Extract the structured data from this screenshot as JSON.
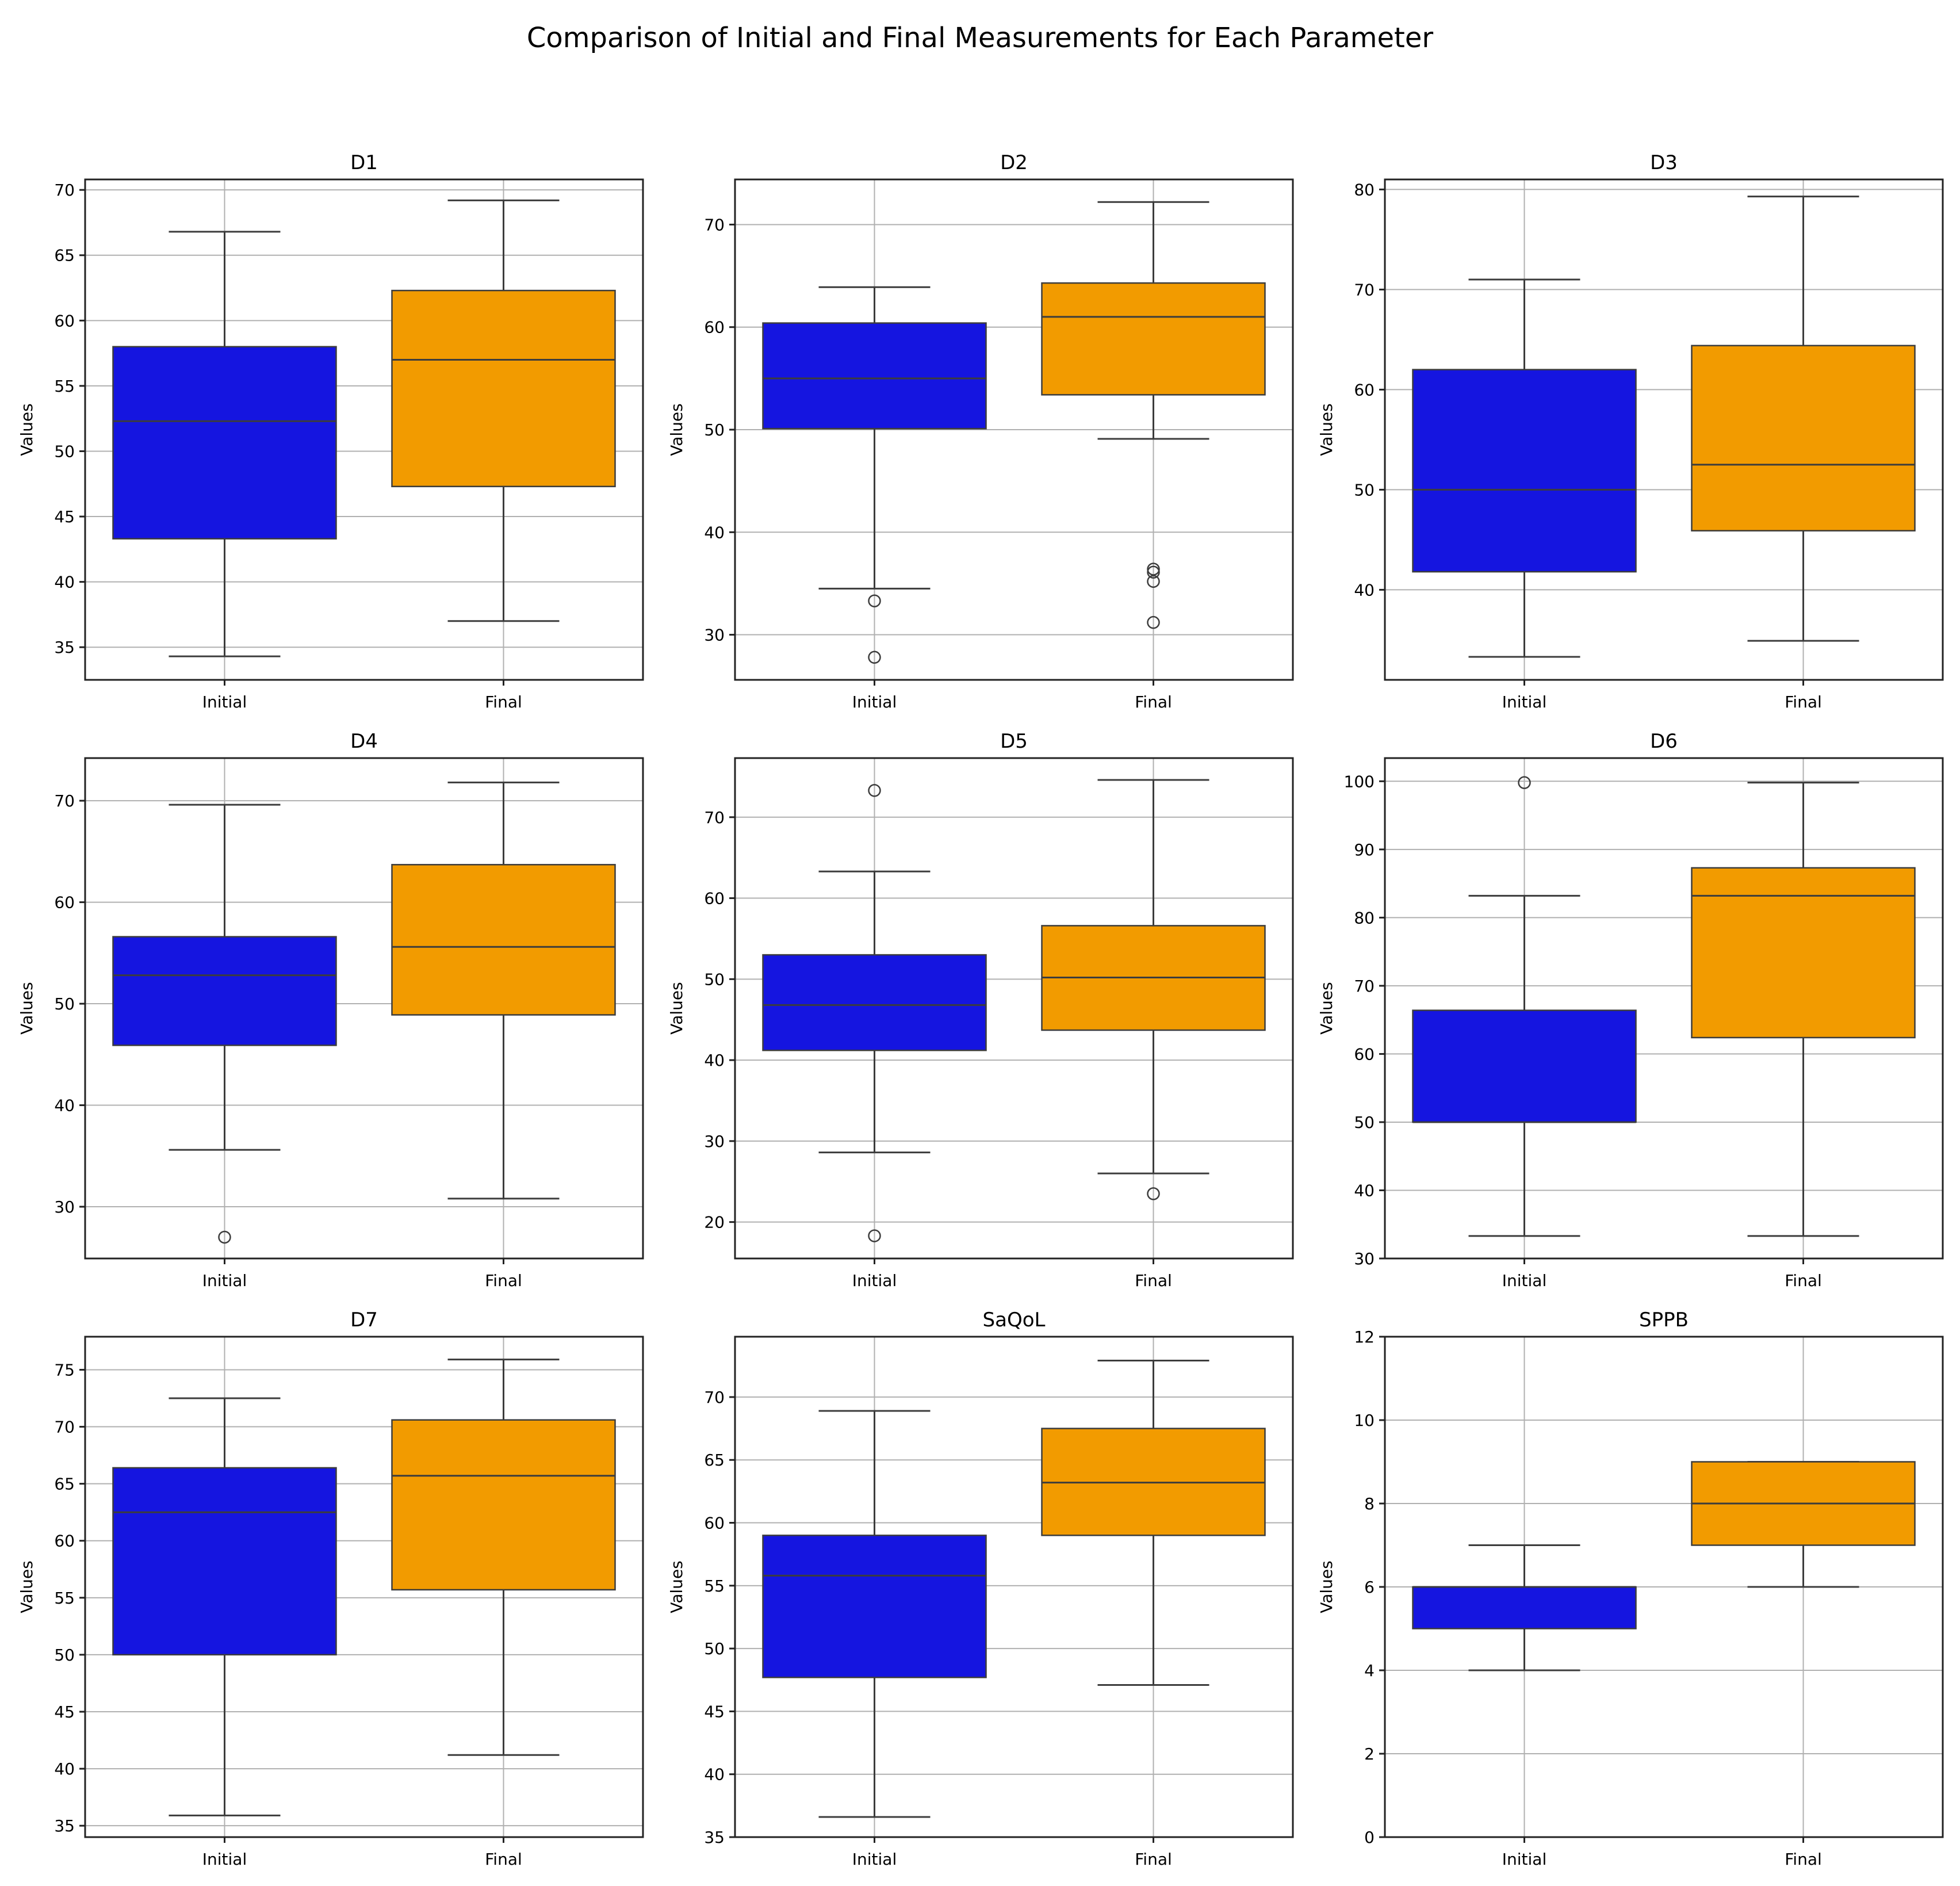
{
  "title": "Comparison of Initial and Final Measurements for Each Parameter",
  "chart_data": {
    "type": "boxplot",
    "layout": "3x3 grid",
    "groups": [
      "Initial",
      "Final"
    ],
    "colors": {
      "Initial": "#1515e0",
      "Final": "#f29b00"
    },
    "ylabel": "Values",
    "panels": [
      {
        "name": "D1",
        "ylim": [
          32.5,
          70.8
        ],
        "yticks": [
          35,
          40,
          45,
          50,
          55,
          60,
          65,
          70
        ],
        "boxes": [
          {
            "group": "Initial",
            "whislo": 34.3,
            "q1": 43.3,
            "med": 52.3,
            "q3": 58.0,
            "whishi": 66.8,
            "fliers": []
          },
          {
            "group": "Final",
            "whislo": 37.0,
            "q1": 47.3,
            "med": 57.0,
            "q3": 62.3,
            "whishi": 69.2,
            "fliers": []
          }
        ]
      },
      {
        "name": "D2",
        "ylim": [
          25.6,
          74.4
        ],
        "yticks": [
          30,
          40,
          50,
          60,
          70
        ],
        "boxes": [
          {
            "group": "Initial",
            "whislo": 34.5,
            "q1": 50.1,
            "med": 55.0,
            "q3": 60.4,
            "whishi": 63.9,
            "fliers": [
              33.3,
              27.8
            ]
          },
          {
            "group": "Final",
            "whislo": 49.1,
            "q1": 53.4,
            "med": 61.0,
            "q3": 64.3,
            "whishi": 72.2,
            "fliers": [
              36.4,
              36.1,
              35.2,
              31.2
            ]
          }
        ]
      },
      {
        "name": "D3",
        "ylim": [
          31.0,
          81.0
        ],
        "yticks": [
          40,
          50,
          60,
          70,
          80
        ],
        "boxes": [
          {
            "group": "Initial",
            "whislo": 33.3,
            "q1": 41.8,
            "med": 50.0,
            "q3": 62.0,
            "whishi": 71.0,
            "fliers": []
          },
          {
            "group": "Final",
            "whislo": 34.9,
            "q1": 45.9,
            "med": 52.5,
            "q3": 64.4,
            "whishi": 79.3,
            "fliers": []
          }
        ]
      },
      {
        "name": "D4",
        "ylim": [
          24.9,
          74.2
        ],
        "yticks": [
          30,
          40,
          50,
          60,
          70
        ],
        "boxes": [
          {
            "group": "Initial",
            "whislo": 35.6,
            "q1": 45.9,
            "med": 52.8,
            "q3": 56.6,
            "whishi": 69.6,
            "fliers": [
              27.0
            ]
          },
          {
            "group": "Final",
            "whislo": 30.8,
            "q1": 48.9,
            "med": 55.6,
            "q3": 63.7,
            "whishi": 71.8,
            "fliers": []
          }
        ]
      },
      {
        "name": "D5",
        "ylim": [
          15.5,
          77.3
        ],
        "yticks": [
          20,
          30,
          40,
          50,
          60,
          70
        ],
        "boxes": [
          {
            "group": "Initial",
            "whislo": 28.6,
            "q1": 41.2,
            "med": 46.8,
            "q3": 53.0,
            "whishi": 63.3,
            "fliers": [
              73.3,
              18.3
            ]
          },
          {
            "group": "Final",
            "whislo": 26.0,
            "q1": 43.7,
            "med": 50.2,
            "q3": 56.6,
            "whishi": 74.6,
            "fliers": [
              23.5
            ]
          }
        ]
      },
      {
        "name": "D6",
        "ylim": [
          30.0,
          103.4
        ],
        "yticks": [
          30,
          40,
          50,
          60,
          70,
          80,
          90,
          100
        ],
        "boxes": [
          {
            "group": "Initial",
            "whislo": 33.3,
            "q1": 50.0,
            "med": 50.0,
            "q3": 66.4,
            "whishi": 83.2,
            "fliers": [
              99.8
            ]
          },
          {
            "group": "Final",
            "whislo": 33.3,
            "q1": 62.4,
            "med": 83.2,
            "q3": 87.3,
            "whishi": 99.8,
            "fliers": []
          }
        ]
      },
      {
        "name": "D7",
        "ylim": [
          34.0,
          77.9
        ],
        "yticks": [
          35,
          40,
          45,
          50,
          55,
          60,
          65,
          70,
          75
        ],
        "boxes": [
          {
            "group": "Initial",
            "whislo": 35.9,
            "q1": 50.0,
            "med": 62.5,
            "q3": 66.4,
            "whishi": 72.5,
            "fliers": []
          },
          {
            "group": "Final",
            "whislo": 41.2,
            "q1": 55.7,
            "med": 65.7,
            "q3": 70.6,
            "whishi": 75.9,
            "fliers": []
          }
        ]
      },
      {
        "name": "SaQoL",
        "ylim": [
          35.0,
          74.8
        ],
        "yticks": [
          35,
          40,
          45,
          50,
          55,
          60,
          65,
          70
        ],
        "boxes": [
          {
            "group": "Initial",
            "whislo": 36.6,
            "q1": 47.7,
            "med": 55.8,
            "q3": 59.0,
            "whishi": 68.9,
            "fliers": []
          },
          {
            "group": "Final",
            "whislo": 47.1,
            "q1": 59.0,
            "med": 63.2,
            "q3": 67.5,
            "whishi": 72.9,
            "fliers": []
          }
        ]
      },
      {
        "name": "SPPB",
        "ylim": [
          0,
          12
        ],
        "yticks": [
          0,
          2,
          4,
          6,
          8,
          10,
          12
        ],
        "boxes": [
          {
            "group": "Initial",
            "whislo": 4,
            "q1": 5,
            "med": 6,
            "q3": 6,
            "whishi": 7,
            "fliers": []
          },
          {
            "group": "Final",
            "whislo": 6,
            "q1": 7,
            "med": 8,
            "q3": 9,
            "whishi": 9,
            "fliers": []
          }
        ]
      }
    ]
  }
}
